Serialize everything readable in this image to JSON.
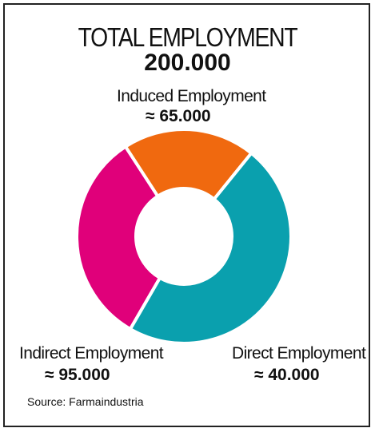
{
  "chart_data": {
    "type": "pie",
    "title": "TOTAL EMPLOYMENT",
    "total": "200.000",
    "categories": [
      "Induced Employment",
      "Direct Employment",
      "Indirect Employment"
    ],
    "values": [
      65000,
      40000,
      95000
    ],
    "value_labels": [
      "≈ 65.000",
      "≈ 40.000",
      "≈ 95.000"
    ],
    "colors": [
      "#e0007a",
      "#f0690f",
      "#0aa0ae"
    ],
    "donut": true
  },
  "source": "Source: Farmaindustria"
}
